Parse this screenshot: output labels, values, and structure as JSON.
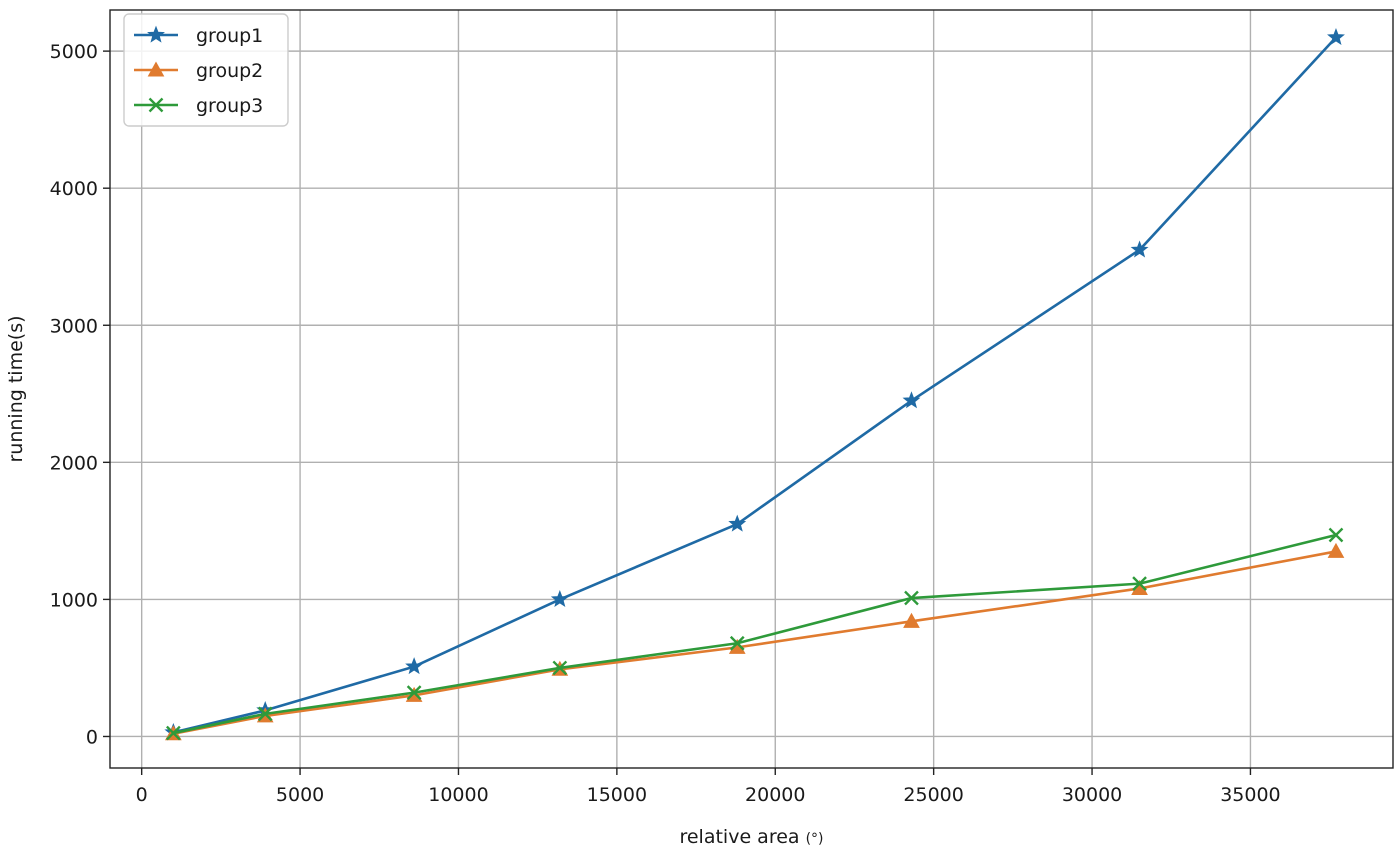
{
  "chart_data": {
    "type": "line",
    "title": "",
    "xlabel": "relative area",
    "xlabel_suffix": "(°)",
    "ylabel": "running time(s)",
    "xlim": [
      -1000,
      39500
    ],
    "ylim": [
      -230,
      5300
    ],
    "xticks": [
      0,
      5000,
      10000,
      15000,
      20000,
      25000,
      30000,
      35000
    ],
    "yticks": [
      0,
      1000,
      2000,
      3000,
      4000,
      5000
    ],
    "grid": true,
    "legend_position": "top-left",
    "x": [
      1000,
      3900,
      8600,
      13200,
      18800,
      24300,
      31500,
      37700
    ],
    "series": [
      {
        "name": "group1",
        "color": "#1f6aa5",
        "marker": "star",
        "values": [
          30,
          190,
          510,
          1000,
          1550,
          2450,
          3550,
          5100
        ]
      },
      {
        "name": "group2",
        "color": "#e07b2f",
        "marker": "triangle",
        "values": [
          20,
          150,
          300,
          490,
          650,
          840,
          1080,
          1350
        ]
      },
      {
        "name": "group3",
        "color": "#2e9a3a",
        "marker": "x",
        "values": [
          25,
          165,
          320,
          500,
          680,
          1010,
          1115,
          1470
        ]
      }
    ]
  }
}
